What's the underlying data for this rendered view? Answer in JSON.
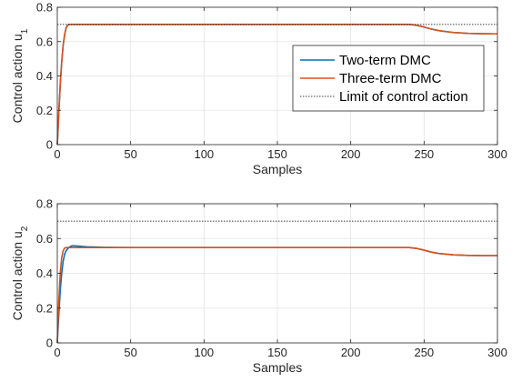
{
  "chart_data": [
    {
      "type": "line",
      "xlabel": "Samples",
      "ylabel": "Control action u",
      "ylabel_subscript": "1",
      "xlim": [
        0,
        300
      ],
      "ylim": [
        0,
        0.8
      ],
      "xticks": [
        0,
        50,
        100,
        150,
        200,
        250,
        300
      ],
      "yticks": [
        0,
        0.2,
        0.4,
        0.6,
        0.8
      ],
      "xtick_labels": [
        "0",
        "50",
        "100",
        "150",
        "200",
        "250",
        "300"
      ],
      "ytick_labels": [
        "0",
        "0.2",
        "0.4",
        "0.6",
        "0.8"
      ],
      "grid": true,
      "legend_position": "right",
      "series": [
        {
          "name": "Two-term DMC",
          "color": "#0072BD",
          "style": "solid",
          "x": [
            0,
            1,
            2,
            3,
            4,
            5,
            6,
            7,
            8,
            10,
            15,
            50,
            100,
            150,
            200,
            240,
            245,
            250,
            255,
            260,
            270,
            280,
            290,
            300
          ],
          "y": [
            0,
            0.18,
            0.35,
            0.48,
            0.58,
            0.64,
            0.68,
            0.695,
            0.7,
            0.7,
            0.7,
            0.7,
            0.7,
            0.7,
            0.7,
            0.7,
            0.695,
            0.685,
            0.673,
            0.664,
            0.653,
            0.648,
            0.646,
            0.645
          ]
        },
        {
          "name": "Three-term DMC",
          "color": "#D95319",
          "style": "solid",
          "x": [
            0,
            1,
            2,
            3,
            4,
            5,
            6,
            7,
            8,
            10,
            15,
            50,
            100,
            150,
            200,
            240,
            245,
            250,
            255,
            260,
            270,
            280,
            290,
            300
          ],
          "y": [
            0,
            0.18,
            0.35,
            0.48,
            0.58,
            0.64,
            0.68,
            0.695,
            0.7,
            0.7,
            0.7,
            0.7,
            0.7,
            0.7,
            0.7,
            0.7,
            0.695,
            0.685,
            0.673,
            0.664,
            0.653,
            0.648,
            0.646,
            0.645
          ]
        },
        {
          "name": "Limit of control action",
          "color": "#000000",
          "style": "dotted",
          "x": [
            0,
            300
          ],
          "y": [
            0.7,
            0.7
          ]
        }
      ]
    },
    {
      "type": "line",
      "xlabel": "Samples",
      "ylabel": "Control action u",
      "ylabel_subscript": "2",
      "xlim": [
        0,
        300
      ],
      "ylim": [
        0,
        0.8
      ],
      "xticks": [
        0,
        50,
        100,
        150,
        200,
        250,
        300
      ],
      "yticks": [
        0,
        0.2,
        0.4,
        0.6,
        0.8
      ],
      "xtick_labels": [
        "0",
        "50",
        "100",
        "150",
        "200",
        "250",
        "300"
      ],
      "ytick_labels": [
        "0",
        "0.2",
        "0.4",
        "0.6",
        "0.8"
      ],
      "grid": true,
      "series": [
        {
          "name": "Two-term DMC",
          "color": "#0072BD",
          "style": "solid",
          "x": [
            0,
            1,
            2,
            3,
            4,
            5,
            6,
            8,
            10,
            12,
            15,
            20,
            30,
            50,
            100,
            150,
            200,
            240,
            245,
            250,
            255,
            260,
            270,
            280,
            290,
            300
          ],
          "y": [
            0,
            0.16,
            0.3,
            0.4,
            0.47,
            0.51,
            0.53,
            0.55,
            0.558,
            0.558,
            0.556,
            0.553,
            0.55,
            0.548,
            0.548,
            0.548,
            0.548,
            0.548,
            0.543,
            0.533,
            0.522,
            0.514,
            0.506,
            0.503,
            0.502,
            0.502
          ]
        },
        {
          "name": "Three-term DMC",
          "color": "#D95319",
          "style": "solid",
          "x": [
            0,
            1,
            2,
            3,
            4,
            5,
            6,
            8,
            10,
            12,
            15,
            20,
            30,
            50,
            100,
            150,
            200,
            240,
            245,
            250,
            255,
            260,
            270,
            280,
            290,
            300
          ],
          "y": [
            0,
            0.24,
            0.4,
            0.49,
            0.53,
            0.545,
            0.548,
            0.548,
            0.548,
            0.548,
            0.548,
            0.548,
            0.548,
            0.548,
            0.548,
            0.548,
            0.548,
            0.548,
            0.543,
            0.533,
            0.522,
            0.514,
            0.506,
            0.503,
            0.502,
            0.502
          ]
        },
        {
          "name": "Limit of control action",
          "color": "#000000",
          "style": "dotted",
          "x": [
            0,
            300
          ],
          "y": [
            0.7,
            0.7
          ]
        }
      ]
    }
  ]
}
